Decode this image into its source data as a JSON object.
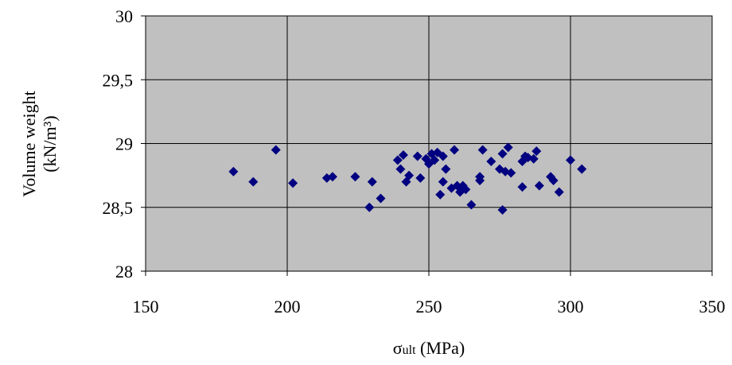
{
  "chart_data": {
    "type": "scatter",
    "title": "",
    "xlabel": {
      "symbol": "σ",
      "subscript": "ult",
      "rest": " (MPa)"
    },
    "ylabel": {
      "line1": "Volume weight",
      "line2": "(kN/m³)"
    },
    "xlim": [
      150,
      350
    ],
    "ylim": [
      28,
      30
    ],
    "x_ticks": [
      150,
      200,
      250,
      300,
      350
    ],
    "y_ticks": [
      28,
      28.5,
      29,
      29.5,
      30
    ],
    "x_tick_labels": [
      "150",
      "200",
      "250",
      "300",
      "350"
    ],
    "y_tick_labels": [
      "28",
      "28,5",
      "29",
      "29,5",
      "30"
    ],
    "grid": true,
    "legend": "none",
    "colors": {
      "plot_background": "#c0c0c0",
      "marker": "#000080",
      "grid": "#000000"
    },
    "marker_shape": "diamond",
    "points": [
      [
        181,
        28.78
      ],
      [
        188,
        28.7
      ],
      [
        196,
        28.95
      ],
      [
        202,
        28.69
      ],
      [
        214,
        28.73
      ],
      [
        216,
        28.74
      ],
      [
        224,
        28.74
      ],
      [
        229,
        28.5
      ],
      [
        230,
        28.7
      ],
      [
        233,
        28.57
      ],
      [
        239,
        28.87
      ],
      [
        240,
        28.8
      ],
      [
        241,
        28.91
      ],
      [
        242,
        28.7
      ],
      [
        243,
        28.75
      ],
      [
        246,
        28.9
      ],
      [
        247,
        28.73
      ],
      [
        249,
        28.88
      ],
      [
        250,
        28.84
      ],
      [
        251,
        28.92
      ],
      [
        252,
        28.87
      ],
      [
        253,
        28.93
      ],
      [
        254,
        28.6
      ],
      [
        255,
        28.7
      ],
      [
        255,
        28.9
      ],
      [
        256,
        28.8
      ],
      [
        258,
        28.65
      ],
      [
        259,
        28.95
      ],
      [
        260,
        28.67
      ],
      [
        261,
        28.62
      ],
      [
        262,
        28.67
      ],
      [
        263,
        28.64
      ],
      [
        265,
        28.52
      ],
      [
        268,
        28.71
      ],
      [
        268,
        28.74
      ],
      [
        269,
        28.95
      ],
      [
        272,
        28.86
      ],
      [
        275,
        28.8
      ],
      [
        276,
        28.92
      ],
      [
        276,
        28.48
      ],
      [
        277,
        28.78
      ],
      [
        278,
        28.97
      ],
      [
        279,
        28.77
      ],
      [
        283,
        28.86
      ],
      [
        283,
        28.66
      ],
      [
        284,
        28.9
      ],
      [
        285,
        28.89
      ],
      [
        287,
        28.88
      ],
      [
        288,
        28.94
      ],
      [
        289,
        28.67
      ],
      [
        293,
        28.74
      ],
      [
        294,
        28.71
      ],
      [
        296,
        28.62
      ],
      [
        300,
        28.87
      ],
      [
        304,
        28.8
      ]
    ]
  }
}
